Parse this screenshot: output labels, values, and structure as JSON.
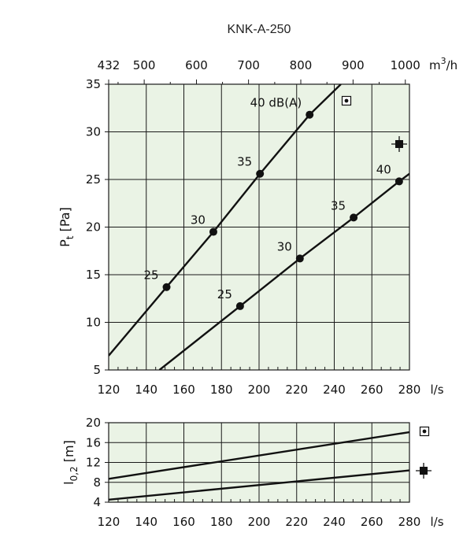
{
  "title": "KNK-A-250",
  "colors": {
    "plot_bg": "#eaf3e5",
    "grid": "#1a1a1a",
    "line": "#111111"
  },
  "chart_data": [
    {
      "type": "line",
      "name": "pressure",
      "xlabel": "l/s",
      "ylabel": "P_t [Pa]",
      "ylabel_main": "P",
      "ylabel_sub": "t",
      "ylabel_rest": " [Pa]",
      "xlim": [
        120,
        280
      ],
      "ylim": [
        5,
        35
      ],
      "xticks": [
        120,
        140,
        160,
        180,
        200,
        220,
        240,
        260,
        280
      ],
      "yticks": [
        5,
        10,
        15,
        20,
        25,
        30,
        35
      ],
      "top_axis": {
        "unit_main": "m",
        "unit_sup": "3",
        "unit_rest": "/h",
        "ticks": [
          {
            "label": "432",
            "value": 120
          },
          {
            "label": "500",
            "value": 138.9
          },
          {
            "label": "600",
            "value": 166.7
          },
          {
            "label": "700",
            "value": 194.4
          },
          {
            "label": "800",
            "value": 222.2
          },
          {
            "label": "900",
            "value": 250
          },
          {
            "label": "1000",
            "value": 277.8
          }
        ]
      },
      "series": [
        {
          "x": [
            120,
            150.8,
            175.7,
            200.5,
            226.9,
            243.5
          ],
          "y": [
            6.5,
            13.7,
            19.5,
            25.6,
            31.8,
            35
          ],
          "markers": [
            {
              "x": 150.8,
              "y": 13.7,
              "label": "25"
            },
            {
              "x": 175.7,
              "y": 19.5,
              "label": "30"
            },
            {
              "x": 200.5,
              "y": 25.6,
              "label": "35"
            },
            {
              "x": 226.9,
              "y": 31.8,
              "label": "40 dB(A)"
            }
          ]
        },
        {
          "x": [
            147,
            189.9,
            221.7,
            250.3,
            274.5,
            280
          ],
          "y": [
            5,
            11.7,
            16.7,
            21,
            24.8,
            25.6
          ],
          "markers": [
            {
              "x": 189.9,
              "y": 11.7,
              "label": "25"
            },
            {
              "x": 221.7,
              "y": 16.7,
              "label": "30"
            },
            {
              "x": 250.3,
              "y": 21,
              "label": "35"
            },
            {
              "x": 274.5,
              "y": 24.8,
              "label": "40"
            }
          ]
        }
      ]
    },
    {
      "type": "line",
      "name": "throw",
      "xlabel": "l/s",
      "ylabel": "l_0,2 [m]",
      "ylabel_main": "l",
      "ylabel_sub": "0,2",
      "ylabel_rest": " [m]",
      "xlim": [
        120,
        280
      ],
      "ylim": [
        4,
        20
      ],
      "xticks": [
        120,
        140,
        160,
        180,
        200,
        220,
        240,
        260,
        280
      ],
      "yticks": [
        4,
        8,
        12,
        16,
        20
      ],
      "series": [
        {
          "x": [
            120,
            280
          ],
          "y": [
            8.7,
            18.1
          ]
        },
        {
          "x": [
            120,
            280
          ],
          "y": [
            4.5,
            10.4
          ]
        }
      ]
    }
  ]
}
